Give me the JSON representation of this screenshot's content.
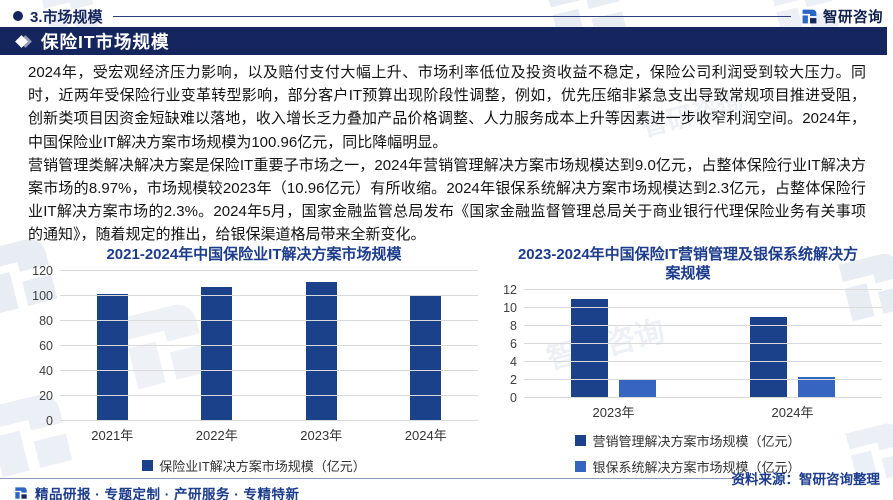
{
  "page": {
    "header": {
      "section_label": "3.市场规模",
      "brand": "智研咨询"
    },
    "section_title": "保险IT市场规模",
    "paragraphs": [
      "2024年，受宏观经济压力影响，以及赔付支付大幅上升、市场利率低位及投资收益不稳定，保险公司利润受到较大压力。同时，近两年受保险行业变革转型影响，部分客户IT预算出现阶段性调整，例如，优先压缩非紧急支出导致常规项目推进受阻，创新类项目因资金短缺难以落地，收入增长乏力叠加产品价格调整、人力服务成本上升等因素进一步收窄利润空间。2024年，中国保险业IT解决方案市场规模为100.96亿元，同比降幅明显。",
      "营销管理类解决解决方案是保险IT重要子市场之一，2024年营销管理解决方案市场规模达到9.0亿元，占整体保险行业IT解决方案市场的8.97%，市场规模较2023年（10.96亿元）有所收缩。2024年银保系统解决方案市场规模达到2.3亿元，占整体保险行业IT解决方案市场的2.3%。2024年5月，国家金融监管总局发布《国家金融监督管理总局关于商业银行代理保险业务有关事项的通知》，随着规定的推出，给银保渠道格局带来全新变化。"
    ],
    "source_note": "资料来源：智研咨询整理",
    "footer_tagline": "精品研报 · 专题定制 · 产研服务 · 专精特新"
  },
  "colors": {
    "navy": "#15265e",
    "chart_title_blue": "#1d3c8c",
    "bar_dark": "#1a4189",
    "bar_light": "#3565c0",
    "watermark": "#ccd6e4"
  },
  "chart_data": [
    {
      "type": "bar",
      "title": "2021-2024年中国保险业IT解决方案市场规模",
      "categories": [
        "2021年",
        "2022年",
        "2023年",
        "2024年"
      ],
      "series": [
        {
          "name": "保险业IT解决方案市场规模（亿元）",
          "values": [
            101.4,
            107.5,
            111.0,
            100.96
          ],
          "color": "#1a4189"
        }
      ],
      "ylim": [
        0,
        120
      ],
      "ystep": 20,
      "grid": true,
      "legend_position": "bottom"
    },
    {
      "type": "bar",
      "title": "2023-2024年中国保险IT营销管理及银保系统解决方案规模",
      "categories": [
        "2023年",
        "2024年"
      ],
      "series": [
        {
          "name": "营销管理解决方案市场规模（亿元）",
          "values": [
            10.96,
            9.0
          ],
          "color": "#1a4189"
        },
        {
          "name": "银保系统解决方案市场规模（亿元）",
          "values": [
            2.1,
            2.3
          ],
          "color": "#3565c0"
        }
      ],
      "ylim": [
        0,
        12
      ],
      "ystep": 2,
      "grid": true,
      "legend_position": "bottom-column"
    }
  ]
}
